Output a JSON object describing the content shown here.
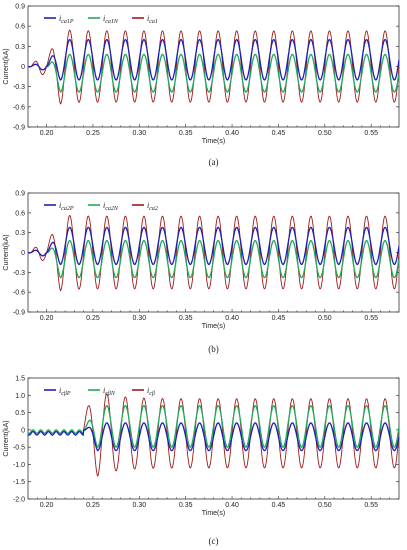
{
  "chart_data": [
    {
      "type": "line",
      "panel_label": "(a)",
      "xlabel": "Time(s)",
      "ylabel": "Current(kA)",
      "xlim": [
        0.18,
        0.58
      ],
      "ylim": [
        -0.9,
        0.9
      ],
      "x_ticks": [
        "0.20",
        "0.25",
        "0.30",
        "0.35",
        "0.40",
        "0.45",
        "0.50",
        "0.55"
      ],
      "y_ticks": [
        "-0.9",
        "-0.6",
        "-0.3",
        "0",
        "0.3",
        "0.6",
        "0.9"
      ],
      "legend_position": "top-left",
      "fault_time": 0.2,
      "frequency_hz": 50,
      "series": [
        {
          "name_main": "i",
          "name_sub": "ca1P",
          "color": "#1f1fb4",
          "offset": 0.1,
          "amplitude": 0.3
        },
        {
          "name_main": "i",
          "name_sub": "ca1N",
          "color": "#22a85a",
          "offset": -0.1,
          "amplitude": 0.28
        },
        {
          "name_main": "i",
          "name_sub": "ca1",
          "color": "#9e1b1b",
          "offset": 0.0,
          "amplitude": 0.53
        }
      ]
    },
    {
      "type": "line",
      "panel_label": "(b)",
      "xlabel": "Time(s)",
      "ylabel": "Current(kA)",
      "xlim": [
        0.18,
        0.58
      ],
      "ylim": [
        -0.9,
        0.9
      ],
      "x_ticks": [
        "0.20",
        "0.25",
        "0.30",
        "0.35",
        "0.40",
        "0.45",
        "0.50",
        "0.55"
      ],
      "y_ticks": [
        "-0.9",
        "-0.6",
        "-0.3",
        "0",
        "0.3",
        "0.6",
        "0.9"
      ],
      "legend_position": "top-left",
      "fault_time": 0.2,
      "frequency_hz": 50,
      "series": [
        {
          "name_main": "i",
          "name_sub": "ca2P",
          "color": "#1f1fb4",
          "offset": 0.1,
          "amplitude": 0.28
        },
        {
          "name_main": "i",
          "name_sub": "ca2N",
          "color": "#22a85a",
          "offset": -0.1,
          "amplitude": 0.28
        },
        {
          "name_main": "i",
          "name_sub": "ca2",
          "color": "#9e1b1b",
          "offset": 0.0,
          "amplitude": 0.55
        }
      ]
    },
    {
      "type": "line",
      "panel_label": "(c)",
      "xlabel": "Time(s)",
      "ylabel": "Current(kA)",
      "xlim": [
        0.18,
        0.58
      ],
      "ylim": [
        -2.0,
        1.5
      ],
      "x_ticks": [
        "0.20",
        "0.25",
        "0.30",
        "0.35",
        "0.40",
        "0.45",
        "0.50",
        "0.55"
      ],
      "y_ticks": [
        "-2.0",
        "-1.5",
        "-1.0",
        "-0.5",
        "0",
        "0.5",
        "1.0",
        "1.5"
      ],
      "legend_position": "top-left",
      "fault_time": 0.24,
      "frequency_hz": 50,
      "series": [
        {
          "name_main": "i",
          "name_sub": "cβP",
          "color": "#1f1fb4",
          "offset": -0.2,
          "amplitude": 0.4
        },
        {
          "name_main": "i",
          "name_sub": "cβN",
          "color": "#22a85a",
          "offset": 0.1,
          "amplitude": 0.6
        },
        {
          "name_main": "i",
          "name_sub": "cβ",
          "color": "#9e1b1b",
          "offset": -0.1,
          "amplitude": 1.0
        }
      ]
    }
  ]
}
